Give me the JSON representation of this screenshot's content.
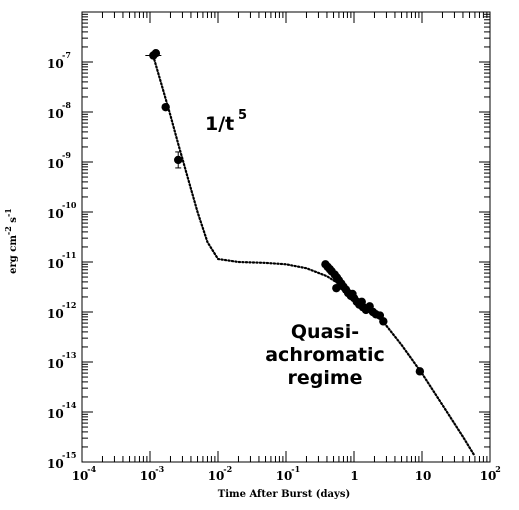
{
  "chart_data": {
    "type": "scatter",
    "x_scale": "log",
    "y_scale": "log",
    "xlim": [
      0.0001,
      100
    ],
    "ylim": [
      1e-15,
      1e-06
    ],
    "xlabel": "Time After Burst (days)",
    "ylabel_parts": {
      "base": "erg cm",
      "exp1": "-2",
      "mid": " s",
      "exp2": "-1"
    },
    "x_ticks": [
      {
        "value": 0.0001,
        "base": "10",
        "exp": "-4"
      },
      {
        "value": 0.001,
        "base": "10",
        "exp": "-3"
      },
      {
        "value": 0.01,
        "base": "10",
        "exp": "-2"
      },
      {
        "value": 0.1,
        "base": "10",
        "exp": "-1"
      },
      {
        "value": 1,
        "base": "1",
        "exp": ""
      },
      {
        "value": 10,
        "base": "10",
        "exp": ""
      },
      {
        "value": 100,
        "base": "10",
        "exp": "2"
      }
    ],
    "y_ticks": [
      {
        "value": 1e-07,
        "base": "10",
        "exp": "-7"
      },
      {
        "value": 1e-08,
        "base": "10",
        "exp": "-8"
      },
      {
        "value": 1e-09,
        "base": "10",
        "exp": "-9"
      },
      {
        "value": 1e-10,
        "base": "10",
        "exp": "-10"
      },
      {
        "value": 1e-11,
        "base": "10",
        "exp": "-11"
      },
      {
        "value": 1e-12,
        "base": "10",
        "exp": "-12"
      },
      {
        "value": 1e-13,
        "base": "10",
        "exp": "-13"
      },
      {
        "value": 1e-14,
        "base": "10",
        "exp": "-14"
      },
      {
        "value": 1e-15,
        "base": "10",
        "exp": "-15"
      }
    ],
    "grid": false,
    "series": [
      {
        "kind": "points",
        "points": [
          {
            "x": 0.00112,
            "y": 1.35e-07,
            "xerr": true
          },
          {
            "x": 0.00122,
            "y": 1.5e-07
          },
          {
            "x": 0.0017,
            "y": 1.25e-08
          },
          {
            "x": 0.0026,
            "y": 1.1e-09,
            "yerr": true
          },
          {
            "x": 0.38,
            "y": 9e-12
          },
          {
            "x": 0.41,
            "y": 8e-12
          },
          {
            "x": 0.44,
            "y": 7.2e-12
          },
          {
            "x": 0.47,
            "y": 6.5e-12
          },
          {
            "x": 0.52,
            "y": 5.6e-12
          },
          {
            "x": 0.56,
            "y": 4.9e-12
          },
          {
            "x": 0.6,
            "y": 4.3e-12
          },
          {
            "x": 0.65,
            "y": 3.7e-12
          },
          {
            "x": 0.7,
            "y": 3.2e-12
          },
          {
            "x": 0.76,
            "y": 2.8e-12
          },
          {
            "x": 0.82,
            "y": 2.4e-12
          },
          {
            "x": 0.9,
            "y": 2.1e-12
          },
          {
            "x": 1.0,
            "y": 1.9e-12
          },
          {
            "x": 1.1,
            "y": 1.6e-12
          },
          {
            "x": 1.2,
            "y": 1.4e-12
          },
          {
            "x": 1.35,
            "y": 1.25e-12
          },
          {
            "x": 1.5,
            "y": 1.1e-12
          },
          {
            "x": 1.7,
            "y": 1.3e-12
          },
          {
            "x": 1.9,
            "y": 1e-12
          },
          {
            "x": 2.1,
            "y": 9e-13
          },
          {
            "x": 2.4,
            "y": 8.5e-13
          },
          {
            "x": 2.7,
            "y": 6.5e-13
          },
          {
            "x": 9.3,
            "y": 6.5e-14
          },
          {
            "x": 0.55,
            "y": 3e-12
          },
          {
            "x": 1.3,
            "y": 1.6e-12
          },
          {
            "x": 0.95,
            "y": 2.3e-12
          }
        ]
      },
      {
        "kind": "model",
        "points": [
          {
            "x": 0.00112,
            "y": 1.3e-07
          },
          {
            "x": 0.0015,
            "y": 3.3e-08
          },
          {
            "x": 0.002,
            "y": 8.5e-09
          },
          {
            "x": 0.0026,
            "y": 2.3e-09
          },
          {
            "x": 0.0035,
            "y": 5.5e-10
          },
          {
            "x": 0.005,
            "y": 1e-10
          },
          {
            "x": 0.007,
            "y": 2.5e-11
          },
          {
            "x": 0.01,
            "y": 1.15e-11
          },
          {
            "x": 0.02,
            "y": 1e-11
          },
          {
            "x": 0.05,
            "y": 9.6e-12
          },
          {
            "x": 0.1,
            "y": 9e-12
          },
          {
            "x": 0.2,
            "y": 7.5e-12
          },
          {
            "x": 0.4,
            "y": 5.2e-12
          },
          {
            "x": 0.7,
            "y": 3.2e-12
          },
          {
            "x": 1.0,
            "y": 2.2e-12
          },
          {
            "x": 2.0,
            "y": 9.5e-13
          },
          {
            "x": 3.0,
            "y": 5.3e-13
          },
          {
            "x": 5.0,
            "y": 2.2e-13
          },
          {
            "x": 10,
            "y": 5.9e-14
          },
          {
            "x": 20,
            "y": 1.38e-14
          },
          {
            "x": 40,
            "y": 3.2e-15
          },
          {
            "x": 58,
            "y": 1.4e-15
          }
        ]
      }
    ],
    "annotations": [
      {
        "id": "slope",
        "base": "1/t",
        "exp": "5"
      },
      {
        "id": "regime",
        "lines": [
          "Quasi-",
          "achromatic",
          "regime"
        ]
      }
    ]
  }
}
